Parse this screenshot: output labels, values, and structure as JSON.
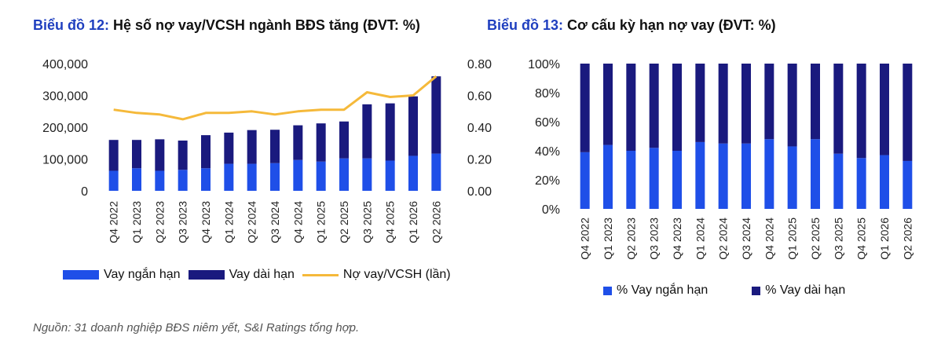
{
  "chart1": {
    "title_number": "Biểu đồ 12:",
    "title_text": " Hệ số nợ vay/VCSH ngành BĐS tăng (ĐVT: %)"
  },
  "chart2": {
    "title_number": "Biểu đồ 13:",
    "title_text": " Cơ cấu kỳ hạn nợ vay (ĐVT: %)"
  },
  "source": "Nguồn: 31 doanh nghiệp BĐS niêm yết,  S&I Ratings tổng hợp.",
  "colors": {
    "short": "#1f4fe8",
    "long": "#1a1a7e",
    "ratio": "#f5b93a",
    "title_accent": "#1f3fbf"
  },
  "chart_data": [
    {
      "type": "bar",
      "stacked": true,
      "categories": [
        "Q4 2022",
        "Q1 2023",
        "Q2 2023",
        "Q3 2023",
        "Q4 2023",
        "Q1 2024",
        "Q2 2024",
        "Q3 2024",
        "Q4 2024",
        "Q1 2025",
        "Q2 2025",
        "Q3 2025",
        "Q4 2025",
        "Q1 2026",
        "Q2 2026"
      ],
      "series": [
        {
          "name": "Vay ngắn hạn",
          "values": [
            63000,
            71000,
            63000,
            66000,
            71000,
            85000,
            85000,
            87000,
            97000,
            92000,
            102000,
            102000,
            95000,
            110000,
            117000
          ]
        },
        {
          "name": "Vay dài hạn",
          "values": [
            97000,
            89000,
            99000,
            92000,
            104000,
            98000,
            106000,
            105000,
            109000,
            120000,
            116000,
            170000,
            180000,
            187000,
            243000
          ]
        }
      ],
      "line_series": {
        "name": "Nợ vay/VCSH (lần)",
        "axis": "right",
        "values": [
          0.51,
          0.49,
          0.48,
          0.45,
          0.49,
          0.49,
          0.5,
          0.48,
          0.5,
          0.51,
          0.51,
          0.62,
          0.59,
          0.6,
          0.72
        ]
      },
      "ylim": [
        0,
        400000
      ],
      "yticks": [
        "0",
        "100,000",
        "200,000",
        "300,000",
        "400,000"
      ],
      "y2lim": [
        0,
        0.8
      ],
      "y2ticks": [
        "0.00",
        "0.20",
        "0.40",
        "0.60",
        "0.80"
      ],
      "legend": "bottom"
    },
    {
      "type": "bar",
      "stacked": true,
      "percent": true,
      "categories": [
        "Q4 2022",
        "Q1 2023",
        "Q2 2023",
        "Q3 2023",
        "Q4 2023",
        "Q1 2024",
        "Q2 2024",
        "Q3 2024",
        "Q4 2024",
        "Q1 2025",
        "Q2 2025",
        "Q3 2025",
        "Q4 2025",
        "Q1 2026",
        "Q2 2026"
      ],
      "series": [
        {
          "name": "% Vay ngắn hạn",
          "values": [
            39,
            44,
            40,
            42,
            40,
            46,
            45,
            45,
            48,
            43,
            48,
            38,
            35,
            37,
            33
          ]
        },
        {
          "name": "% Vay dài hạn",
          "values": [
            61,
            56,
            60,
            58,
            60,
            54,
            55,
            55,
            52,
            57,
            52,
            62,
            65,
            63,
            67
          ]
        }
      ],
      "ylim": [
        0,
        100
      ],
      "yticks": [
        "0%",
        "20%",
        "40%",
        "60%",
        "80%",
        "100%"
      ],
      "legend": "bottom"
    }
  ]
}
